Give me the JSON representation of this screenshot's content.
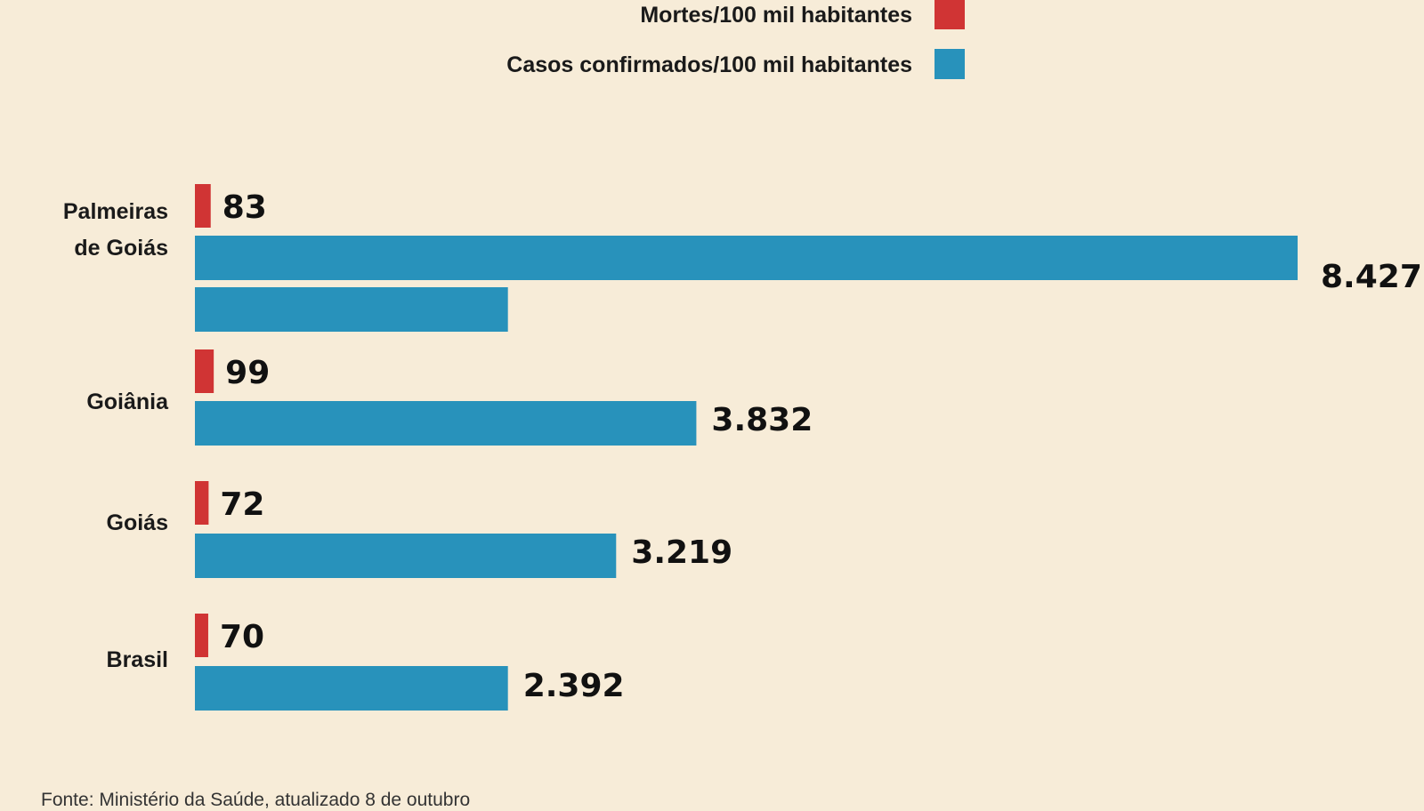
{
  "chart_data": {
    "type": "bar",
    "orientation": "horizontal",
    "categories": [
      "Palmeiras\nde Goiás",
      "Goiânia",
      "Goiás",
      "Brasil"
    ],
    "series": [
      {
        "name": "Mortes/100 mil habitantes",
        "color": "#d03434",
        "values": [
          83,
          99,
          72,
          70
        ]
      },
      {
        "name": "Casos confirmados/100 mil habitantes",
        "color": "#2892bb",
        "values": [
          8427,
          3832,
          3219,
          2392
        ]
      }
    ],
    "value_labels": {
      "deaths": [
        "83",
        "99",
        "72",
        "70"
      ],
      "cases": [
        "8.427",
        "3.832",
        "3.219",
        "2.392"
      ]
    },
    "extra_bars": [
      {
        "category": "Palmeiras\nde Goiás",
        "series": "Casos confirmados/100 mil habitantes",
        "value": 2392
      }
    ],
    "legend_position": "top-right",
    "grid": false,
    "xlim": [
      0,
      8427
    ]
  },
  "source": "Fonte: Ministério da Saúde, atualizado 8 de outubro"
}
